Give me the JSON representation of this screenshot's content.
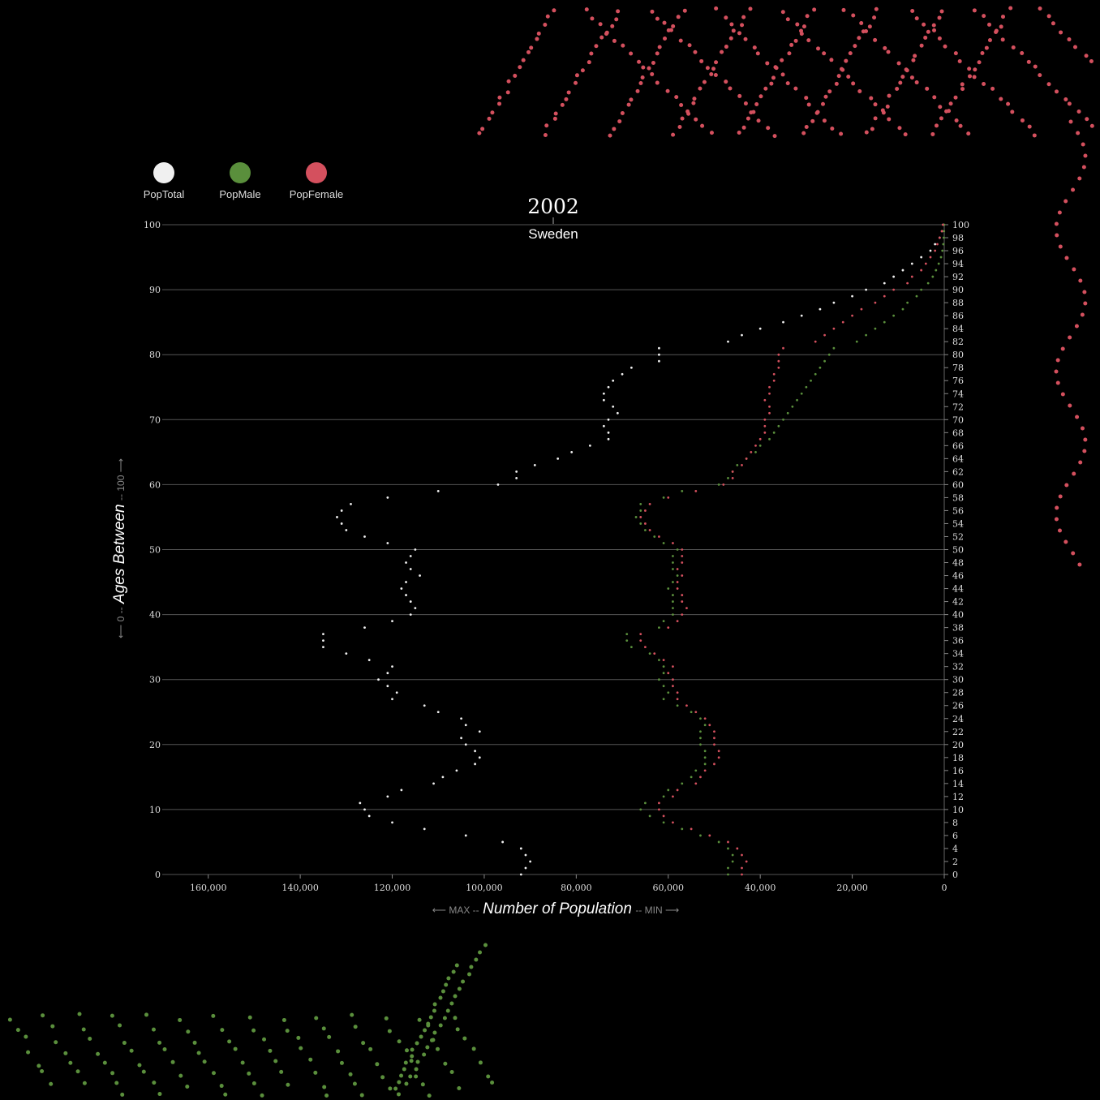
{
  "legend": [
    {
      "label": "PopTotal",
      "color": "#f0f0f0"
    },
    {
      "label": "PopMale",
      "color": "#5a8f3c"
    },
    {
      "label": "PopFemale",
      "color": "#d4505e"
    }
  ],
  "title": "2002",
  "subtitle": "Sweden",
  "axis": {
    "x_label": "Number of Population",
    "x_side_left": "⟵ MAX --",
    "x_side_right": "-- MIN ⟶",
    "y_label": "Ages Between",
    "y_side_left": "⟵ 0 --",
    "y_side_right": "-- 100 ⟶"
  },
  "chart_data": {
    "type": "scatter",
    "title": "2002",
    "subtitle": "Sweden",
    "xlabel": "Number of Population",
    "ylabel": "Ages Between",
    "xlim": [
      170000,
      0
    ],
    "ylim": [
      0,
      100
    ],
    "x_ticks": [
      160000,
      140000,
      120000,
      100000,
      80000,
      60000,
      40000,
      20000,
      0
    ],
    "x_tick_labels": [
      "160,000",
      "140,000",
      "120,000",
      "100,000",
      "80,000",
      "60,000",
      "40,000",
      "20,000",
      "0"
    ],
    "y_ticks_left": [
      0,
      10,
      20,
      30,
      40,
      50,
      60,
      70,
      80,
      90,
      100
    ],
    "y_ticks_right": [
      0,
      2,
      4,
      6,
      8,
      10,
      12,
      14,
      16,
      18,
      20,
      22,
      24,
      26,
      28,
      30,
      32,
      34,
      36,
      38,
      40,
      42,
      44,
      46,
      48,
      50,
      52,
      54,
      56,
      58,
      60,
      62,
      64,
      66,
      68,
      70,
      72,
      74,
      76,
      78,
      80,
      82,
      84,
      86,
      88,
      90,
      92,
      94,
      96,
      98,
      100
    ],
    "grid": "horizontal",
    "legend_position": "top-left",
    "ages": [
      0,
      1,
      2,
      3,
      4,
      5,
      6,
      7,
      8,
      9,
      10,
      11,
      12,
      13,
      14,
      15,
      16,
      17,
      18,
      19,
      20,
      21,
      22,
      23,
      24,
      25,
      26,
      27,
      28,
      29,
      30,
      31,
      32,
      33,
      34,
      35,
      36,
      37,
      38,
      39,
      40,
      41,
      42,
      43,
      44,
      45,
      46,
      47,
      48,
      49,
      50,
      51,
      52,
      53,
      54,
      55,
      56,
      57,
      58,
      59,
      60,
      61,
      62,
      63,
      64,
      65,
      66,
      67,
      68,
      69,
      70,
      71,
      72,
      73,
      74,
      75,
      76,
      77,
      78,
      79,
      80,
      81,
      82,
      83,
      84,
      85,
      86,
      87,
      88,
      89,
      90,
      91,
      92,
      93,
      94,
      95,
      96,
      97,
      98,
      99,
      100
    ],
    "series": [
      {
        "name": "PopTotal",
        "color": "#f0f0f0",
        "values": [
          92000,
          91000,
          90000,
          91000,
          92000,
          96000,
          104000,
          113000,
          120000,
          125000,
          126000,
          127000,
          121000,
          118000,
          111000,
          109000,
          106000,
          102000,
          101000,
          102000,
          104000,
          105000,
          101000,
          104000,
          105000,
          110000,
          113000,
          120000,
          119000,
          121000,
          123000,
          121000,
          120000,
          125000,
          130000,
          135000,
          135000,
          135000,
          126000,
          120000,
          116000,
          115000,
          116000,
          117000,
          118000,
          117000,
          114000,
          116000,
          117000,
          116000,
          115000,
          121000,
          126000,
          130000,
          131000,
          132000,
          131000,
          129000,
          121000,
          110000,
          97000,
          93000,
          93000,
          89000,
          84000,
          81000,
          77000,
          73000,
          73000,
          74000,
          73000,
          71000,
          72000,
          74000,
          74000,
          73000,
          72000,
          70000,
          68000,
          62000,
          62000,
          62000,
          47000,
          44000,
          40000,
          35000,
          31000,
          27000,
          24000,
          20000,
          17000,
          13000,
          11000,
          9000,
          7000,
          5000,
          3000,
          2000,
          1000,
          500,
          200
        ]
      },
      {
        "name": "PopMale",
        "color": "#5a8f3c",
        "values": [
          47000,
          47000,
          46000,
          46000,
          47000,
          49000,
          53000,
          57000,
          61000,
          64000,
          66000,
          65000,
          61000,
          60000,
          57000,
          55000,
          54000,
          52000,
          52000,
          52000,
          53000,
          53000,
          53000,
          52000,
          53000,
          55000,
          58000,
          61000,
          60000,
          61000,
          62000,
          61000,
          61000,
          62000,
          64000,
          68000,
          69000,
          69000,
          62000,
          61000,
          59000,
          59000,
          59000,
          59000,
          60000,
          59000,
          58000,
          59000,
          59000,
          59000,
          58000,
          61000,
          63000,
          65000,
          66000,
          67000,
          66000,
          66000,
          61000,
          57000,
          49000,
          47000,
          46000,
          45000,
          43000,
          41000,
          40000,
          38000,
          37000,
          36000,
          35000,
          34000,
          33000,
          32000,
          31000,
          30000,
          29000,
          28000,
          27000,
          26000,
          25000,
          24000,
          19000,
          17000,
          15000,
          13000,
          11000,
          9000,
          8000,
          6000,
          5000,
          3500,
          2500,
          1800,
          1200,
          700,
          400,
          200,
          100,
          50,
          20
        ]
      },
      {
        "name": "PopFemale",
        "color": "#d4505e",
        "values": [
          44000,
          44000,
          43000,
          44000,
          45000,
          47000,
          51000,
          55000,
          59000,
          61000,
          62000,
          62000,
          59000,
          58000,
          54000,
          53000,
          52000,
          50000,
          49000,
          49000,
          50000,
          50000,
          50000,
          51000,
          52000,
          54000,
          56000,
          58000,
          58000,
          59000,
          59000,
          60000,
          59000,
          61000,
          63000,
          65000,
          66000,
          66000,
          60000,
          58000,
          57000,
          56000,
          57000,
          57000,
          58000,
          58000,
          57000,
          58000,
          57000,
          57000,
          57000,
          59000,
          62000,
          64000,
          65000,
          66000,
          65000,
          64000,
          60000,
          54000,
          48000,
          46000,
          46000,
          44000,
          43000,
          42000,
          41000,
          40000,
          39000,
          39000,
          39000,
          38000,
          38000,
          39000,
          38000,
          38000,
          37000,
          37000,
          36000,
          36000,
          36000,
          35000,
          28000,
          26000,
          24000,
          22000,
          20000,
          18000,
          15000,
          13000,
          11000,
          8000,
          7000,
          5000,
          4000,
          3000,
          2000,
          1500,
          1000,
          500,
          300
        ]
      }
    ]
  },
  "decor_colors": {
    "female": "#d4505e",
    "male": "#5a8f3c"
  }
}
